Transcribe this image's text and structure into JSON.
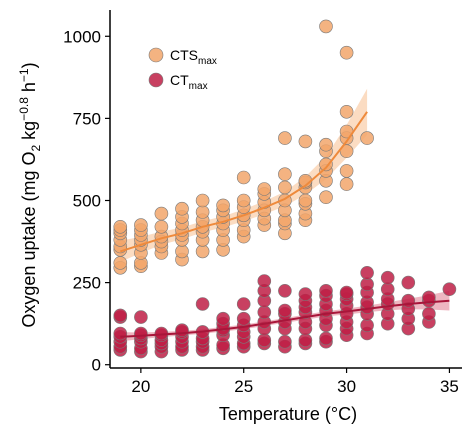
{
  "chart_data": {
    "type": "scatter",
    "title": "",
    "xlabel": "Temperature (°C)",
    "ylabel_parts": {
      "main": "Oxygen uptake (mg O",
      "sub2": "2",
      "mid": " kg",
      "exp1": "−0.8",
      "mid2": " h",
      "exp2": "−1",
      "end": ")"
    },
    "xlim": [
      18.5,
      36
    ],
    "ylim": [
      -10,
      1080
    ],
    "x_ticks": [
      20,
      25,
      30,
      35
    ],
    "y_ticks": [
      0,
      250,
      500,
      750,
      1000
    ],
    "grid": false,
    "legend_position": "top-left",
    "series": [
      {
        "name": "CTS",
        "name_sub": "max",
        "color": "#F2A66B",
        "line_color": "#EE8A3C",
        "band_color": "#F7C08F",
        "points": [
          [
            19,
            295
          ],
          [
            19,
            310
          ],
          [
            19,
            350
          ],
          [
            19,
            360
          ],
          [
            19,
            380
          ],
          [
            19,
            400
          ],
          [
            19,
            410
          ],
          [
            19,
            420
          ],
          [
            20,
            300
          ],
          [
            20,
            310
          ],
          [
            20,
            340
          ],
          [
            20,
            365
          ],
          [
            20,
            380
          ],
          [
            20,
            395
          ],
          [
            20,
            410
          ],
          [
            20,
            425
          ],
          [
            21,
            340
          ],
          [
            21,
            360
          ],
          [
            21,
            375
          ],
          [
            21,
            390
          ],
          [
            21,
            420
          ],
          [
            21,
            460
          ],
          [
            22,
            320
          ],
          [
            22,
            345
          ],
          [
            22,
            380
          ],
          [
            22,
            395
          ],
          [
            22,
            410
          ],
          [
            22,
            430
          ],
          [
            22,
            450
          ],
          [
            22,
            475
          ],
          [
            23,
            345
          ],
          [
            23,
            380
          ],
          [
            23,
            405
          ],
          [
            23,
            420
          ],
          [
            23,
            440
          ],
          [
            23,
            465
          ],
          [
            23,
            500
          ],
          [
            24,
            350
          ],
          [
            24,
            380
          ],
          [
            24,
            410
          ],
          [
            24,
            430
          ],
          [
            24,
            450
          ],
          [
            24,
            470
          ],
          [
            24,
            485
          ],
          [
            25,
            390
          ],
          [
            25,
            410
          ],
          [
            25,
            440
          ],
          [
            25,
            455
          ],
          [
            25,
            480
          ],
          [
            25,
            500
          ],
          [
            25,
            570
          ],
          [
            26,
            425
          ],
          [
            26,
            445
          ],
          [
            26,
            470
          ],
          [
            26,
            495
          ],
          [
            26,
            520
          ],
          [
            26,
            535
          ],
          [
            27,
            400
          ],
          [
            27,
            430
          ],
          [
            27,
            440
          ],
          [
            27,
            470
          ],
          [
            27,
            500
          ],
          [
            27,
            540
          ],
          [
            27,
            580
          ],
          [
            27,
            690
          ],
          [
            28,
            440
          ],
          [
            28,
            460
          ],
          [
            28,
            490
          ],
          [
            28,
            500
          ],
          [
            28,
            540
          ],
          [
            28,
            555
          ],
          [
            28,
            560
          ],
          [
            28,
            680
          ],
          [
            29,
            510
          ],
          [
            29,
            560
          ],
          [
            29,
            590
          ],
          [
            29,
            610
          ],
          [
            29,
            650
          ],
          [
            29,
            670
          ],
          [
            29,
            1030
          ],
          [
            30,
            550
          ],
          [
            30,
            590
          ],
          [
            30,
            650
          ],
          [
            30,
            690
          ],
          [
            30,
            710
          ],
          [
            30,
            770
          ],
          [
            30,
            950
          ],
          [
            31,
            690
          ]
        ],
        "trend": [
          [
            19,
            345
          ],
          [
            20,
            365
          ],
          [
            21,
            385
          ],
          [
            22,
            400
          ],
          [
            23,
            420
          ],
          [
            24,
            435
          ],
          [
            25,
            455
          ],
          [
            26,
            478
          ],
          [
            27,
            505
          ],
          [
            28,
            545
          ],
          [
            29,
            600
          ],
          [
            30,
            680
          ],
          [
            31,
            770
          ]
        ],
        "band_halfwidth": [
          32,
          25,
          20,
          18,
          17,
          17,
          18,
          20,
          22,
          27,
          35,
          50,
          70
        ]
      },
      {
        "name": "CT",
        "name_sub": "max",
        "color": "#BE1E45",
        "line_color": "#A8163A",
        "band_color": "#E07A8E",
        "points": [
          [
            19,
            45
          ],
          [
            19,
            55
          ],
          [
            19,
            70
          ],
          [
            19,
            85
          ],
          [
            19,
            95
          ],
          [
            19,
            145
          ],
          [
            19,
            150
          ],
          [
            20,
            40
          ],
          [
            20,
            50
          ],
          [
            20,
            70
          ],
          [
            20,
            80
          ],
          [
            20,
            90
          ],
          [
            20,
            95
          ],
          [
            20,
            145
          ],
          [
            21,
            40
          ],
          [
            21,
            55
          ],
          [
            21,
            65
          ],
          [
            21,
            75
          ],
          [
            21,
            90
          ],
          [
            21,
            95
          ],
          [
            22,
            45
          ],
          [
            22,
            55
          ],
          [
            22,
            70
          ],
          [
            22,
            85
          ],
          [
            22,
            100
          ],
          [
            22,
            105
          ],
          [
            23,
            45
          ],
          [
            23,
            55
          ],
          [
            23,
            70
          ],
          [
            23,
            80
          ],
          [
            23,
            100
          ],
          [
            23,
            185
          ],
          [
            24,
            50
          ],
          [
            24,
            60
          ],
          [
            24,
            90
          ],
          [
            24,
            105
          ],
          [
            24,
            110
          ],
          [
            24,
            125
          ],
          [
            24,
            140
          ],
          [
            25,
            55
          ],
          [
            25,
            65
          ],
          [
            25,
            85
          ],
          [
            25,
            100
          ],
          [
            25,
            120
          ],
          [
            25,
            140
          ],
          [
            25,
            185
          ],
          [
            26,
            65
          ],
          [
            26,
            75
          ],
          [
            26,
            110
          ],
          [
            26,
            130
          ],
          [
            26,
            160
          ],
          [
            26,
            195
          ],
          [
            26,
            225
          ],
          [
            26,
            255
          ],
          [
            27,
            55
          ],
          [
            27,
            70
          ],
          [
            27,
            110
          ],
          [
            27,
            130
          ],
          [
            27,
            155
          ],
          [
            27,
            165
          ],
          [
            27,
            225
          ],
          [
            28,
            65
          ],
          [
            28,
            75
          ],
          [
            28,
            110
          ],
          [
            28,
            130
          ],
          [
            28,
            160
          ],
          [
            28,
            175
          ],
          [
            28,
            195
          ],
          [
            28,
            215
          ],
          [
            29,
            70
          ],
          [
            29,
            80
          ],
          [
            29,
            120
          ],
          [
            29,
            140
          ],
          [
            29,
            165
          ],
          [
            29,
            185
          ],
          [
            29,
            210
          ],
          [
            29,
            225
          ],
          [
            30,
            90
          ],
          [
            30,
            110
          ],
          [
            30,
            130
          ],
          [
            30,
            155
          ],
          [
            30,
            180
          ],
          [
            30,
            200
          ],
          [
            30,
            215
          ],
          [
            30,
            220
          ],
          [
            31,
            95
          ],
          [
            31,
            120
          ],
          [
            31,
            155
          ],
          [
            31,
            175
          ],
          [
            31,
            190
          ],
          [
            31,
            220
          ],
          [
            31,
            245
          ],
          [
            31,
            280
          ],
          [
            32,
            125
          ],
          [
            32,
            155
          ],
          [
            32,
            185
          ],
          [
            32,
            200
          ],
          [
            32,
            230
          ],
          [
            32,
            265
          ],
          [
            33,
            110
          ],
          [
            33,
            140
          ],
          [
            33,
            170
          ],
          [
            33,
            195
          ],
          [
            33,
            250
          ],
          [
            34,
            130
          ],
          [
            34,
            155
          ],
          [
            34,
            195
          ],
          [
            34,
            205
          ],
          [
            35,
            230
          ]
        ],
        "trend": [
          [
            19,
            85
          ],
          [
            20,
            88
          ],
          [
            21,
            92
          ],
          [
            22,
            96
          ],
          [
            23,
            101
          ],
          [
            24,
            108
          ],
          [
            25,
            115
          ],
          [
            26,
            125
          ],
          [
            27,
            135
          ],
          [
            28,
            145
          ],
          [
            29,
            155
          ],
          [
            30,
            162
          ],
          [
            31,
            170
          ],
          [
            32,
            178
          ],
          [
            33,
            185
          ],
          [
            34,
            190
          ],
          [
            35,
            195
          ]
        ],
        "band_halfwidth": [
          14,
          10,
          8,
          7,
          7,
          7,
          7,
          7,
          7,
          8,
          8,
          9,
          10,
          12,
          16,
          22,
          30
        ]
      }
    ]
  }
}
